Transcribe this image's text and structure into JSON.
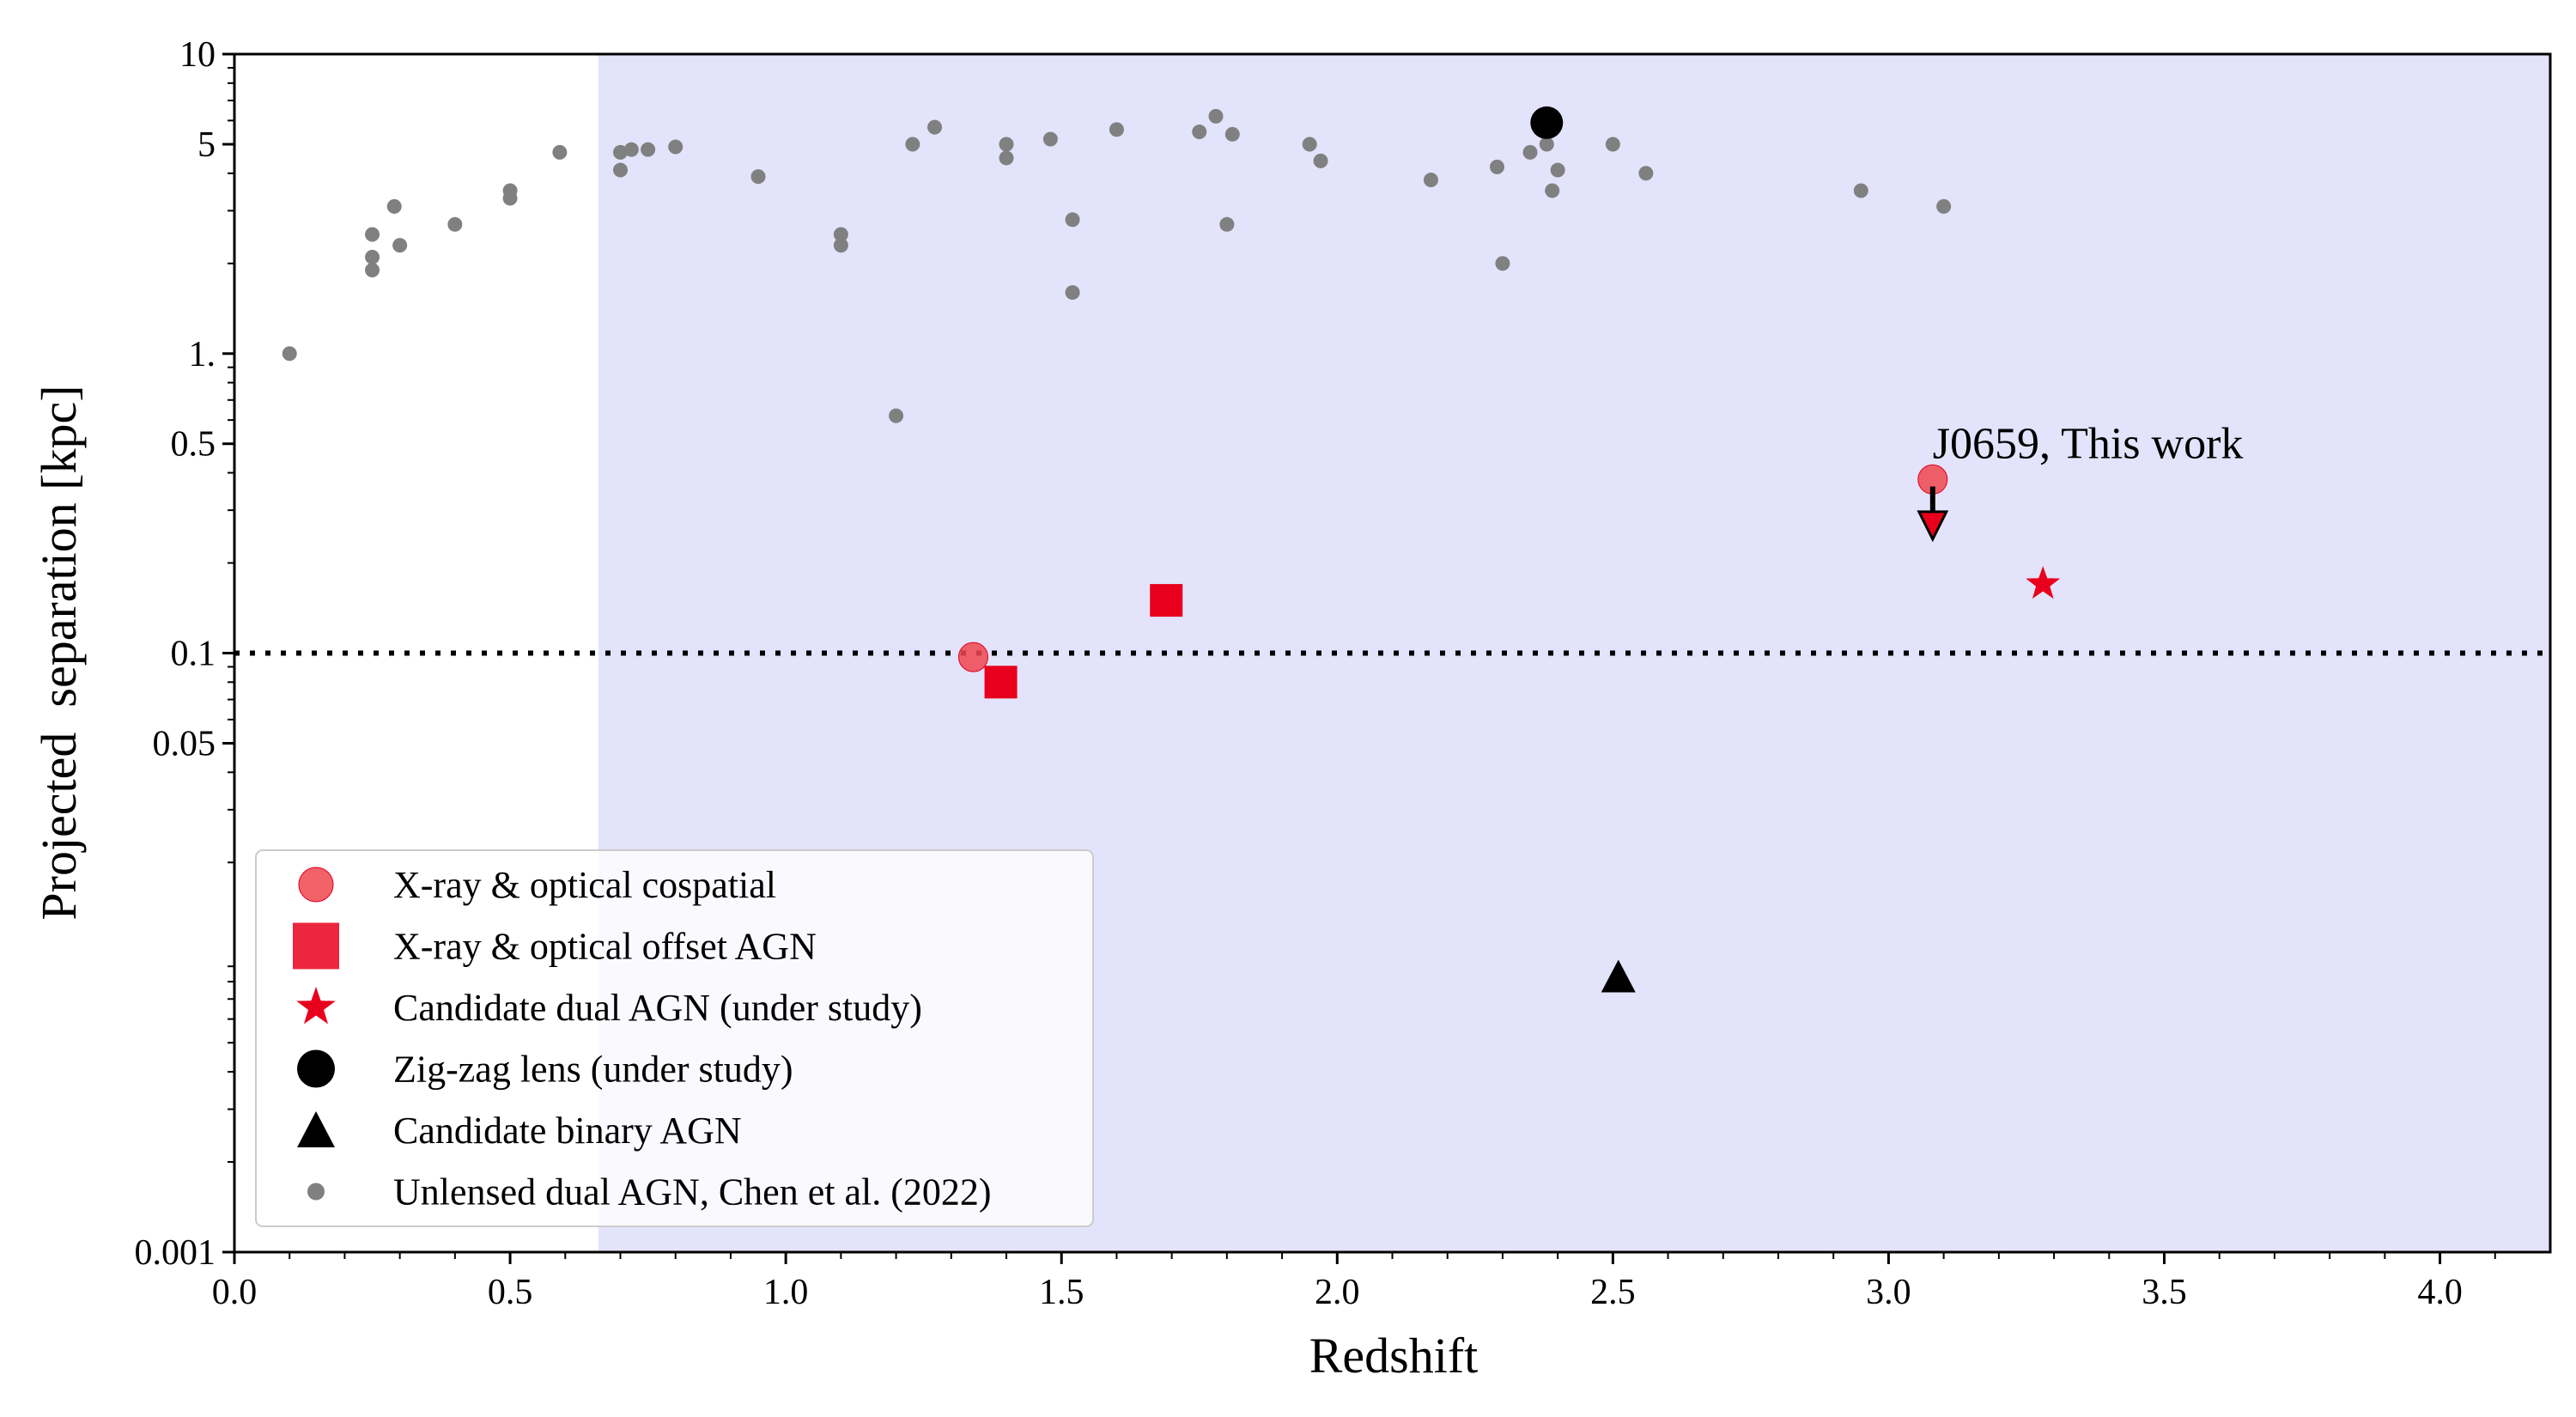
{
  "chart_data": {
    "type": "scatter",
    "xlabel": "Redshift",
    "ylabel": "Projected  separation [kpc]",
    "xlim": [
      0.0,
      4.2
    ],
    "ylim_log10": [
      -3,
      1
    ],
    "y_scale": "log",
    "x_ticks": [
      {
        "value": 0.0,
        "label": "0.0"
      },
      {
        "value": 0.5,
        "label": "0.5"
      },
      {
        "value": 1.0,
        "label": "1.0"
      },
      {
        "value": 1.5,
        "label": "1.5"
      },
      {
        "value": 2.0,
        "label": "2.0"
      },
      {
        "value": 2.5,
        "label": "2.5"
      },
      {
        "value": 3.0,
        "label": "3.0"
      },
      {
        "value": 3.5,
        "label": "3.5"
      },
      {
        "value": 4.0,
        "label": "4.0"
      }
    ],
    "y_ticks": [
      {
        "value": 10,
        "label": "10"
      },
      {
        "value": 5,
        "label": "5"
      },
      {
        "value": 1,
        "label": "1."
      },
      {
        "value": 0.5,
        "label": "0.5"
      },
      {
        "value": 0.1,
        "label": "0.1"
      },
      {
        "value": 0.05,
        "label": "0.05"
      },
      {
        "value": 0.001,
        "label": "0.001"
      }
    ],
    "shaded_region": {
      "x_from": 0.66,
      "x_to": 4.2,
      "color": "#e3e3fb"
    },
    "reference_line": {
      "y": 0.1,
      "style": "dotted"
    },
    "annotation": {
      "text": "J0659, This work",
      "x": 3.08,
      "y": 0.5
    },
    "upper_limit_arrow": {
      "x": 3.08,
      "y_from": 0.36,
      "y_to": 0.24
    },
    "colors": {
      "red": "#e8001c",
      "black": "#000000",
      "grey": "#808080"
    },
    "series": [
      {
        "name": "X-ray & optical cospatial",
        "marker": "circle",
        "color": "#f0464f",
        "points": [
          {
            "x": 1.34,
            "y": 0.097
          },
          {
            "x": 3.08,
            "y": 0.38
          }
        ]
      },
      {
        "name": "X-ray & optical offset AGN",
        "marker": "square",
        "color": "#e8001c",
        "points": [
          {
            "x": 1.39,
            "y": 0.08
          },
          {
            "x": 1.69,
            "y": 0.15
          }
        ]
      },
      {
        "name": "Candidate dual AGN (under study)",
        "marker": "star",
        "color": "#e8001c",
        "points": [
          {
            "x": 3.28,
            "y": 0.17
          }
        ]
      },
      {
        "name": "Zig-zag lens (under study)",
        "marker": "circle-large",
        "color": "#000000",
        "points": [
          {
            "x": 2.38,
            "y": 5.9
          }
        ]
      },
      {
        "name": "Candidate binary AGN",
        "marker": "triangle",
        "color": "#000000",
        "points": [
          {
            "x": 2.51,
            "y": 0.0083
          }
        ]
      },
      {
        "name": "Unlensed dual AGN, Chen et al. (2022)",
        "marker": "dot",
        "color": "#808080",
        "points": [
          {
            "x": 0.1,
            "y": 1.0
          },
          {
            "x": 0.25,
            "y": 2.5
          },
          {
            "x": 0.25,
            "y": 2.1
          },
          {
            "x": 0.25,
            "y": 1.9
          },
          {
            "x": 0.29,
            "y": 3.1
          },
          {
            "x": 0.3,
            "y": 2.3
          },
          {
            "x": 0.4,
            "y": 2.7
          },
          {
            "x": 0.5,
            "y": 3.5
          },
          {
            "x": 0.5,
            "y": 3.3
          },
          {
            "x": 0.59,
            "y": 4.7
          },
          {
            "x": 0.7,
            "y": 4.7
          },
          {
            "x": 0.7,
            "y": 4.1
          },
          {
            "x": 0.72,
            "y": 4.8
          },
          {
            "x": 0.75,
            "y": 4.8
          },
          {
            "x": 0.8,
            "y": 4.9
          },
          {
            "x": 0.95,
            "y": 3.9
          },
          {
            "x": 1.1,
            "y": 2.5
          },
          {
            "x": 1.1,
            "y": 2.3
          },
          {
            "x": 1.2,
            "y": 0.62
          },
          {
            "x": 1.23,
            "y": 5.0
          },
          {
            "x": 1.27,
            "y": 5.7
          },
          {
            "x": 1.4,
            "y": 5.0
          },
          {
            "x": 1.4,
            "y": 4.5
          },
          {
            "x": 1.48,
            "y": 5.2
          },
          {
            "x": 1.52,
            "y": 2.8
          },
          {
            "x": 1.52,
            "y": 1.6
          },
          {
            "x": 1.6,
            "y": 5.6
          },
          {
            "x": 1.75,
            "y": 5.5
          },
          {
            "x": 1.78,
            "y": 6.2
          },
          {
            "x": 1.8,
            "y": 2.7
          },
          {
            "x": 1.81,
            "y": 5.4
          },
          {
            "x": 1.95,
            "y": 5.0
          },
          {
            "x": 1.97,
            "y": 4.4
          },
          {
            "x": 2.17,
            "y": 3.8
          },
          {
            "x": 2.29,
            "y": 4.2
          },
          {
            "x": 2.3,
            "y": 2.0
          },
          {
            "x": 2.35,
            "y": 4.7
          },
          {
            "x": 2.38,
            "y": 5.0
          },
          {
            "x": 2.39,
            "y": 3.5
          },
          {
            "x": 2.4,
            "y": 4.1
          },
          {
            "x": 2.5,
            "y": 5.0
          },
          {
            "x": 2.56,
            "y": 4.0
          },
          {
            "x": 2.95,
            "y": 3.5
          },
          {
            "x": 3.1,
            "y": 3.1
          }
        ]
      }
    ],
    "legend": {
      "placement": "bottom-left",
      "entries": [
        "X-ray & optical cospatial",
        "X-ray & optical offset AGN",
        "Candidate dual AGN (under study)",
        "Zig-zag lens (under study)",
        "Candidate binary AGN",
        "Unlensed dual AGN, Chen et al. (2022)"
      ]
    }
  }
}
